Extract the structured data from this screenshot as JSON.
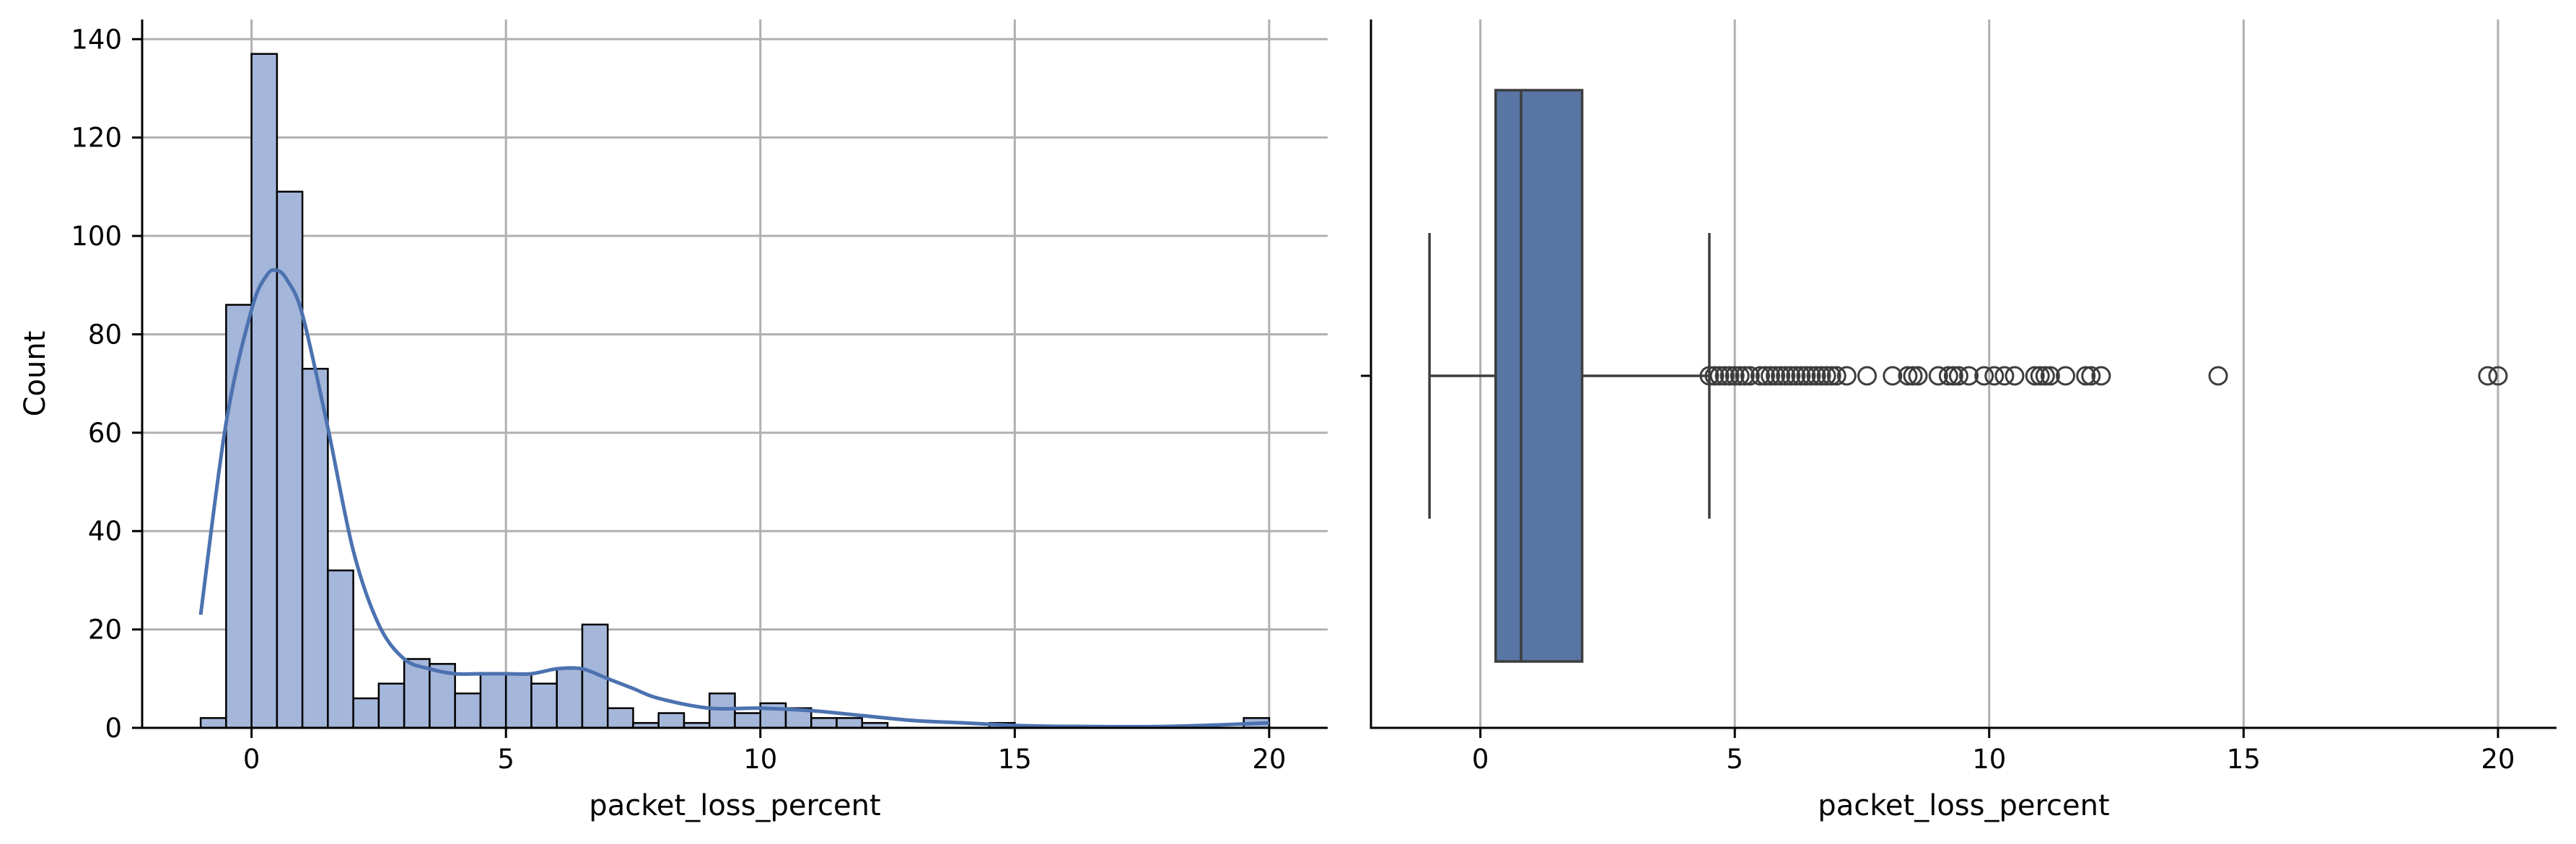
{
  "chart_data": [
    {
      "type": "histogram",
      "xlabel": "packet_loss_percent",
      "ylabel": "Count",
      "xlim": [
        -2.15,
        21.15
      ],
      "ylim": [
        0,
        144
      ],
      "xticks": [
        0,
        5,
        10,
        15,
        20
      ],
      "yticks": [
        0,
        20,
        40,
        60,
        80,
        100,
        120,
        140
      ],
      "grid": true,
      "bar_color": "#a4b6d9",
      "edge_color": "#000000",
      "kde_color": "#4c72b0",
      "bins": [
        {
          "x0": -1.0,
          "x1": -0.5,
          "count": 2
        },
        {
          "x0": -0.5,
          "x1": 0.0,
          "count": 86
        },
        {
          "x0": 0.0,
          "x1": 0.5,
          "count": 137
        },
        {
          "x0": 0.5,
          "x1": 1.0,
          "count": 109
        },
        {
          "x0": 1.0,
          "x1": 1.5,
          "count": 73
        },
        {
          "x0": 1.5,
          "x1": 2.0,
          "count": 32
        },
        {
          "x0": 2.0,
          "x1": 2.5,
          "count": 6
        },
        {
          "x0": 2.5,
          "x1": 3.0,
          "count": 9
        },
        {
          "x0": 3.0,
          "x1": 3.5,
          "count": 14
        },
        {
          "x0": 3.5,
          "x1": 4.0,
          "count": 13
        },
        {
          "x0": 4.0,
          "x1": 4.5,
          "count": 7
        },
        {
          "x0": 4.5,
          "x1": 5.0,
          "count": 11
        },
        {
          "x0": 5.0,
          "x1": 5.5,
          "count": 11
        },
        {
          "x0": 5.5,
          "x1": 6.0,
          "count": 9
        },
        {
          "x0": 6.0,
          "x1": 6.5,
          "count": 12
        },
        {
          "x0": 6.5,
          "x1": 7.0,
          "count": 21
        },
        {
          "x0": 7.0,
          "x1": 7.5,
          "count": 4
        },
        {
          "x0": 7.5,
          "x1": 8.0,
          "count": 1
        },
        {
          "x0": 8.0,
          "x1": 8.5,
          "count": 3
        },
        {
          "x0": 8.5,
          "x1": 9.0,
          "count": 1
        },
        {
          "x0": 9.0,
          "x1": 9.5,
          "count": 7
        },
        {
          "x0": 9.5,
          "x1": 10.0,
          "count": 3
        },
        {
          "x0": 10.0,
          "x1": 10.5,
          "count": 5
        },
        {
          "x0": 10.5,
          "x1": 11.0,
          "count": 4
        },
        {
          "x0": 11.0,
          "x1": 11.5,
          "count": 2
        },
        {
          "x0": 11.5,
          "x1": 12.0,
          "count": 2
        },
        {
          "x0": 12.0,
          "x1": 12.5,
          "count": 1
        },
        {
          "x0": 12.5,
          "x1": 13.0,
          "count": 0
        },
        {
          "x0": 13.0,
          "x1": 13.5,
          "count": 0
        },
        {
          "x0": 13.5,
          "x1": 14.0,
          "count": 0
        },
        {
          "x0": 14.0,
          "x1": 14.5,
          "count": 0
        },
        {
          "x0": 14.5,
          "x1": 15.0,
          "count": 1
        },
        {
          "x0": 15.0,
          "x1": 15.5,
          "count": 0
        },
        {
          "x0": 15.5,
          "x1": 16.0,
          "count": 0
        },
        {
          "x0": 16.0,
          "x1": 16.5,
          "count": 0
        },
        {
          "x0": 16.5,
          "x1": 17.0,
          "count": 0
        },
        {
          "x0": 17.0,
          "x1": 17.5,
          "count": 0
        },
        {
          "x0": 17.5,
          "x1": 18.0,
          "count": 0
        },
        {
          "x0": 18.0,
          "x1": 18.5,
          "count": 0
        },
        {
          "x0": 18.5,
          "x1": 19.0,
          "count": 0
        },
        {
          "x0": 19.0,
          "x1": 19.5,
          "count": 0
        },
        {
          "x0": 19.5,
          "x1": 20.0,
          "count": 2
        }
      ],
      "kde": {
        "x": [
          -1.0,
          -0.5,
          0.0,
          0.3,
          0.5,
          0.7,
          1.0,
          1.5,
          2.0,
          2.5,
          3.0,
          3.5,
          4.0,
          4.5,
          5.0,
          5.5,
          6.0,
          6.5,
          7.0,
          7.5,
          8.0,
          9.0,
          10.0,
          11.0,
          12.0,
          13.0,
          14.0,
          15.0,
          16.0,
          18.0,
          20.0
        ],
        "y": [
          23,
          62,
          85,
          92,
          93,
          91,
          84,
          61,
          36,
          21,
          14,
          12,
          11,
          11,
          11,
          11,
          12,
          12,
          10,
          8,
          6,
          4,
          4,
          3.5,
          2.5,
          1.5,
          1,
          0.5,
          0.3,
          0.3,
          1
        ]
      }
    },
    {
      "type": "box",
      "xlabel": "packet_loss_percent",
      "xlim": [
        -2.15,
        21.15
      ],
      "xticks": [
        0,
        5,
        10,
        15,
        20
      ],
      "grid": true,
      "box_color": "#5975a4",
      "line_color": "#3d3d3d",
      "whisker_low": -1.0,
      "q1": 0.3,
      "median": 0.8,
      "q3": 2.0,
      "whisker_high": 4.5,
      "outliers": [
        4.5,
        4.6,
        4.7,
        4.8,
        4.9,
        5.0,
        5.1,
        5.2,
        5.3,
        5.5,
        5.6,
        5.7,
        5.8,
        5.9,
        6.0,
        6.1,
        6.2,
        6.3,
        6.4,
        6.5,
        6.6,
        6.7,
        6.8,
        6.9,
        7.0,
        7.2,
        7.6,
        8.1,
        8.4,
        8.5,
        8.6,
        9.0,
        9.2,
        9.3,
        9.4,
        9.6,
        9.9,
        10.1,
        10.3,
        10.5,
        10.9,
        11.0,
        11.1,
        11.2,
        11.5,
        11.9,
        12.0,
        12.2,
        14.5,
        19.8,
        20.0
      ]
    }
  ]
}
